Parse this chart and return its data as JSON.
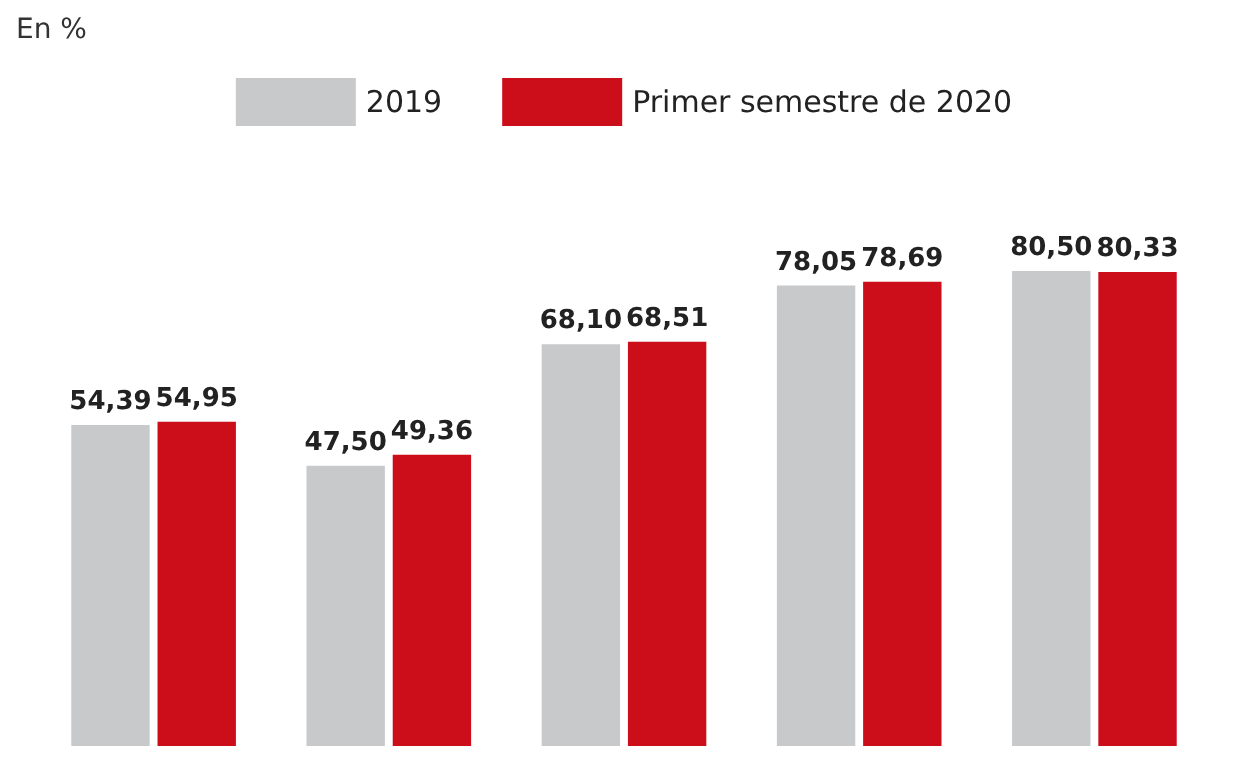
{
  "chart_data": {
    "type": "bar",
    "subtitle": "En %",
    "categories": [
      null,
      null,
      null,
      null,
      null
    ],
    "series": [
      {
        "name": "2019",
        "color": "#c8c9cb",
        "values": [
          54.39,
          47.5,
          68.1,
          78.05,
          80.5
        ],
        "value_labels": [
          "54,39",
          "47,50",
          "68,10",
          "78,05",
          "80,50"
        ]
      },
      {
        "name": "Primer semestre de 2020",
        "color": "#cc0e1b",
        "values": [
          54.95,
          49.36,
          68.51,
          78.69,
          80.33
        ],
        "value_labels": [
          "54,95",
          "49,36",
          "68,51",
          "78,69",
          "80,33"
        ]
      }
    ],
    "legend": "top"
  }
}
